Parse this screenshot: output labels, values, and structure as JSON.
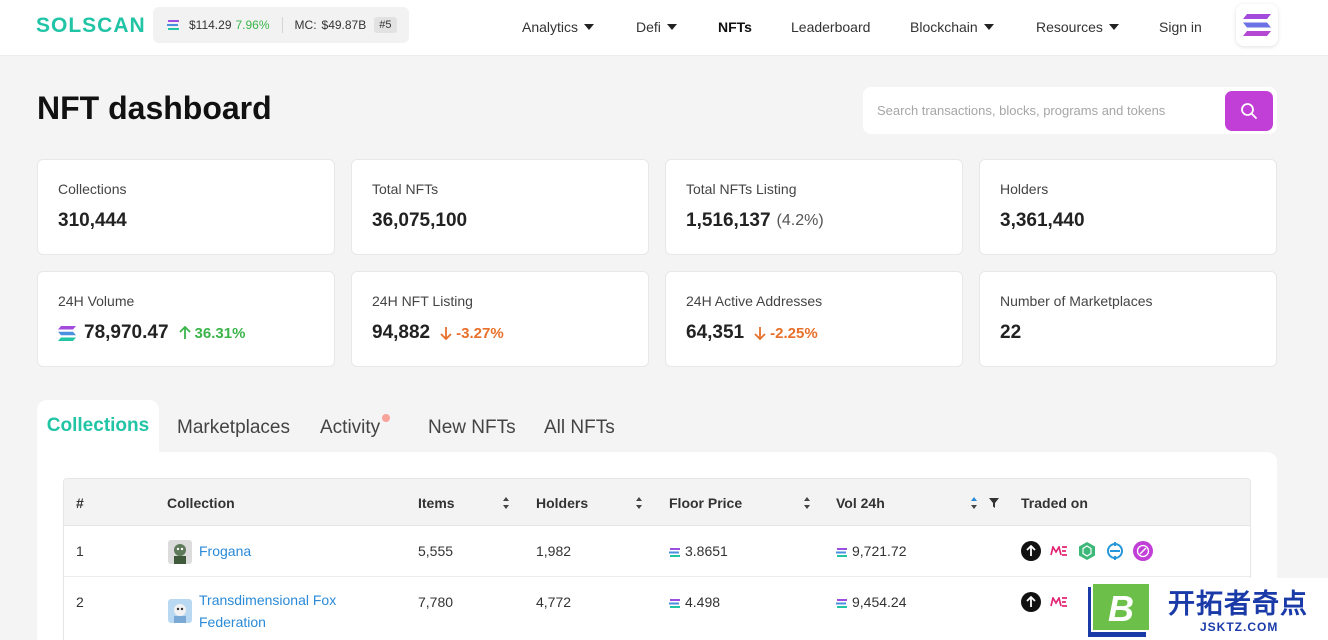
{
  "header": {
    "logo": "SOLSCAN",
    "price": "$114.29",
    "price_change": "7.96%",
    "mc_label": "MC:",
    "mc_value": "$49.87B",
    "rank": "#5",
    "nav": [
      "Analytics",
      "Defi",
      "NFTs",
      "Leaderboard",
      "Blockchain",
      "Resources",
      "Sign in"
    ],
    "active_nav": "NFTs"
  },
  "page": {
    "title": "NFT dashboard",
    "search_placeholder": "Search transactions, blocks, programs and tokens"
  },
  "stats": [
    {
      "label": "Collections",
      "value": "310,444"
    },
    {
      "label": "Total NFTs",
      "value": "36,075,100"
    },
    {
      "label": "Total NFTs Listing",
      "value": "1,516,137",
      "extra": "(4.2%)"
    },
    {
      "label": "Holders",
      "value": "3,361,440"
    },
    {
      "label": "24H Volume",
      "value": "78,970.47",
      "change": "36.31%",
      "direction": "up",
      "icon": "solana-icon"
    },
    {
      "label": "24H NFT Listing",
      "value": "94,882",
      "change": "-3.27%",
      "direction": "down"
    },
    {
      "label": "24H Active Addresses",
      "value": "64,351",
      "change": "-2.25%",
      "direction": "down"
    },
    {
      "label": "Number of Marketplaces",
      "value": "22"
    }
  ],
  "tabs": [
    "Collections",
    "Marketplaces",
    "Activity",
    "New NFTs",
    "All NFTs"
  ],
  "active_tab": "Collections",
  "table": {
    "columns": [
      "#",
      "Collection",
      "Items",
      "Holders",
      "Floor Price",
      "Vol 24h",
      "Traded on"
    ],
    "rows": [
      {
        "rank": "1",
        "name": "Frogana",
        "items": "5,555",
        "holders": "1,982",
        "floor": "3.8651",
        "vol": "9,721.72"
      },
      {
        "rank": "2",
        "name_line1": "Transdimensional Fox",
        "name_line2": "Federation",
        "items": "7,780",
        "holders": "4,772",
        "floor": "4.498",
        "vol": "9,454.24"
      }
    ]
  },
  "watermark": {
    "cn": "开拓者奇点",
    "en": "JSKTZ.COM",
    "letter": "B"
  },
  "colors": {
    "accent": "#22c4a6",
    "search_button": "#c13fd6",
    "up": "#3bb54a",
    "down": "#e8702a",
    "link": "#2a8ad8"
  }
}
